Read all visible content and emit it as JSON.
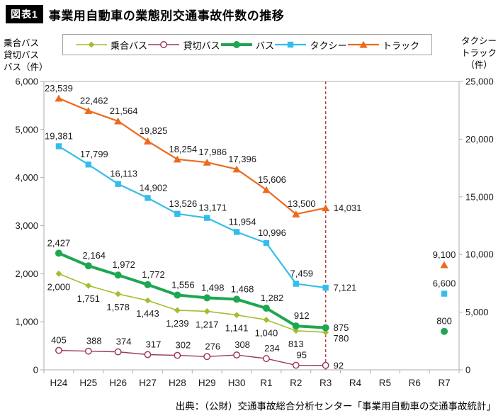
{
  "figure": {
    "badge": "図表1"
  },
  "source_text": "出典：（公財）交通事故総合分析センター「事業用自動車の交通事故統計」",
  "chart_data": {
    "type": "line",
    "title": "事業用自動車の業態別交通事故件数の推移",
    "categories": [
      "H24",
      "H25",
      "H26",
      "H27",
      "H28",
      "H29",
      "H30",
      "R1",
      "R2",
      "R3",
      "R4",
      "R5",
      "R6",
      "R7"
    ],
    "left_axis": {
      "title_lines": [
        "乗合バス",
        "貸切バス",
        "バス（件）"
      ],
      "min": 0,
      "max": 6000,
      "ticks": [
        6000,
        5000,
        4000,
        3000,
        2000,
        1000,
        0
      ]
    },
    "right_axis": {
      "title_lines": [
        "タクシー",
        "トラック",
        "（件）"
      ],
      "min": 0,
      "max": 25000,
      "ticks": [
        25000,
        20000,
        15000,
        10000,
        5000,
        0
      ]
    },
    "divider_line": {
      "at_category": "R3",
      "style": "dashed",
      "color": "#b5403a"
    },
    "legend_position": "top",
    "grid": false,
    "series": [
      {
        "name": "乗合バス",
        "axis": "left",
        "color": "#9fbf2e",
        "marker": "diamond",
        "line_width": 1.6,
        "label_pos": "below",
        "values": [
          2000,
          1751,
          1578,
          1443,
          1239,
          1217,
          1141,
          1040,
          813,
          780,
          null,
          null,
          null,
          null
        ]
      },
      {
        "name": "貸切バス",
        "axis": "left",
        "color": "#9c3a60",
        "marker": "circle-open",
        "line_width": 1.4,
        "label_pos": "above",
        "values": [
          405,
          388,
          374,
          317,
          302,
          276,
          308,
          234,
          95,
          92,
          null,
          null,
          null,
          null
        ]
      },
      {
        "name": "バス",
        "axis": "left",
        "color": "#1fa651",
        "marker": "circle",
        "line_width": 4,
        "label_pos": "above",
        "values": [
          2427,
          2164,
          1972,
          1772,
          1556,
          1498,
          1468,
          1282,
          912,
          875,
          null,
          null,
          null,
          800
        ]
      },
      {
        "name": "タクシー",
        "axis": "right",
        "color": "#35bdea",
        "marker": "square",
        "line_width": 2.2,
        "label_pos": "above",
        "values": [
          19381,
          17799,
          16113,
          14902,
          13526,
          13171,
          11954,
          10996,
          7459,
          7121,
          null,
          null,
          null,
          6600
        ]
      },
      {
        "name": "トラック",
        "axis": "right",
        "color": "#ed6a1d",
        "marker": "triangle",
        "line_width": 2.2,
        "label_pos": "above",
        "values": [
          23539,
          22462,
          21564,
          19825,
          18254,
          17986,
          17396,
          15606,
          13500,
          14031,
          null,
          null,
          null,
          9100
        ]
      }
    ]
  }
}
